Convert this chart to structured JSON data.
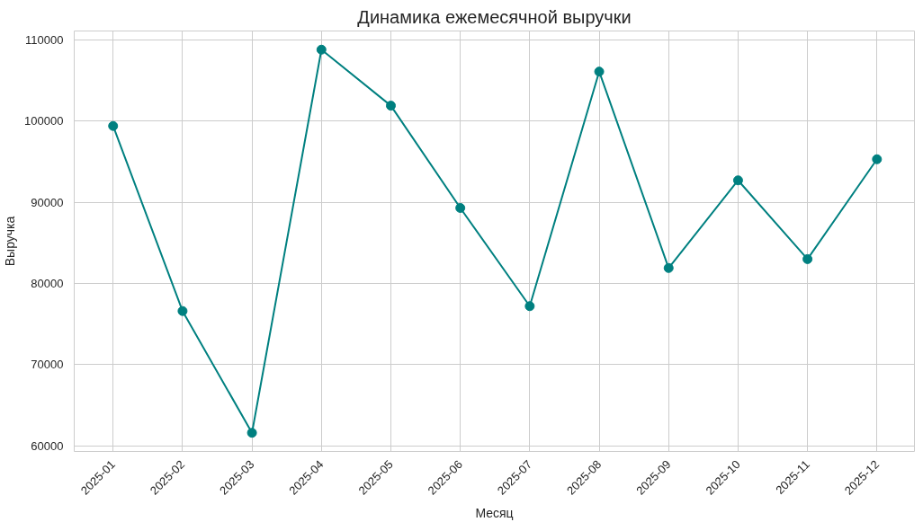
{
  "chart_data": {
    "type": "line",
    "title": "Динамика ежемесячной выручки",
    "xlabel": "Месяц",
    "ylabel": "Выручка",
    "categories": [
      "2025-01",
      "2025-02",
      "2025-03",
      "2025-04",
      "2025-05",
      "2025-06",
      "2025-07",
      "2025-08",
      "2025-09",
      "2025-10",
      "2025-11",
      "2025-12"
    ],
    "values": [
      99400,
      76600,
      61600,
      108800,
      101900,
      89300,
      77200,
      106100,
      81900,
      92700,
      83000,
      95300
    ],
    "color": "#008080",
    "ylim": [
      59300,
      111100
    ],
    "yticks": [
      60000,
      70000,
      80000,
      90000,
      100000,
      110000
    ],
    "grid": true,
    "marker": "circle",
    "line_style": "solid"
  }
}
